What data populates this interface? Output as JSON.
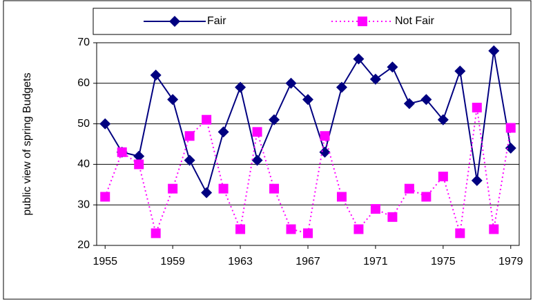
{
  "chart_data": {
    "type": "line",
    "y_label": "public view  of spring Budgets",
    "x": [
      1955,
      1956,
      1957,
      1958,
      1959,
      1960,
      1961,
      1962,
      1963,
      1964,
      1965,
      1966,
      1967,
      1968,
      1969,
      1970,
      1971,
      1972,
      1973,
      1974,
      1975,
      1976,
      1977,
      1978,
      1979
    ],
    "series": [
      {
        "name": "Fair",
        "color": "#000080",
        "marker": "diamond",
        "dash": "solid",
        "values": [
          50,
          43,
          42,
          62,
          56,
          41,
          33,
          48,
          59,
          41,
          51,
          60,
          56,
          43,
          59,
          66,
          61,
          64,
          55,
          56,
          51,
          63,
          36,
          68,
          44
        ]
      },
      {
        "name": "Not Fair",
        "color": "#ff00ff",
        "marker": "square",
        "dash": "dotted",
        "values": [
          32,
          43,
          40,
          23,
          34,
          47,
          51,
          34,
          24,
          48,
          34,
          24,
          23,
          47,
          32,
          24,
          29,
          27,
          34,
          32,
          37,
          23,
          54,
          24,
          49
        ]
      }
    ],
    "xlim": [
      1954.5,
      1979.5
    ],
    "xticks": [
      1955,
      1959,
      1963,
      1967,
      1971,
      1975,
      1979
    ],
    "ylim": [
      20,
      70
    ],
    "yticks": [
      20,
      30,
      40,
      50,
      60,
      70
    ],
    "grid": true,
    "legend": "top"
  }
}
